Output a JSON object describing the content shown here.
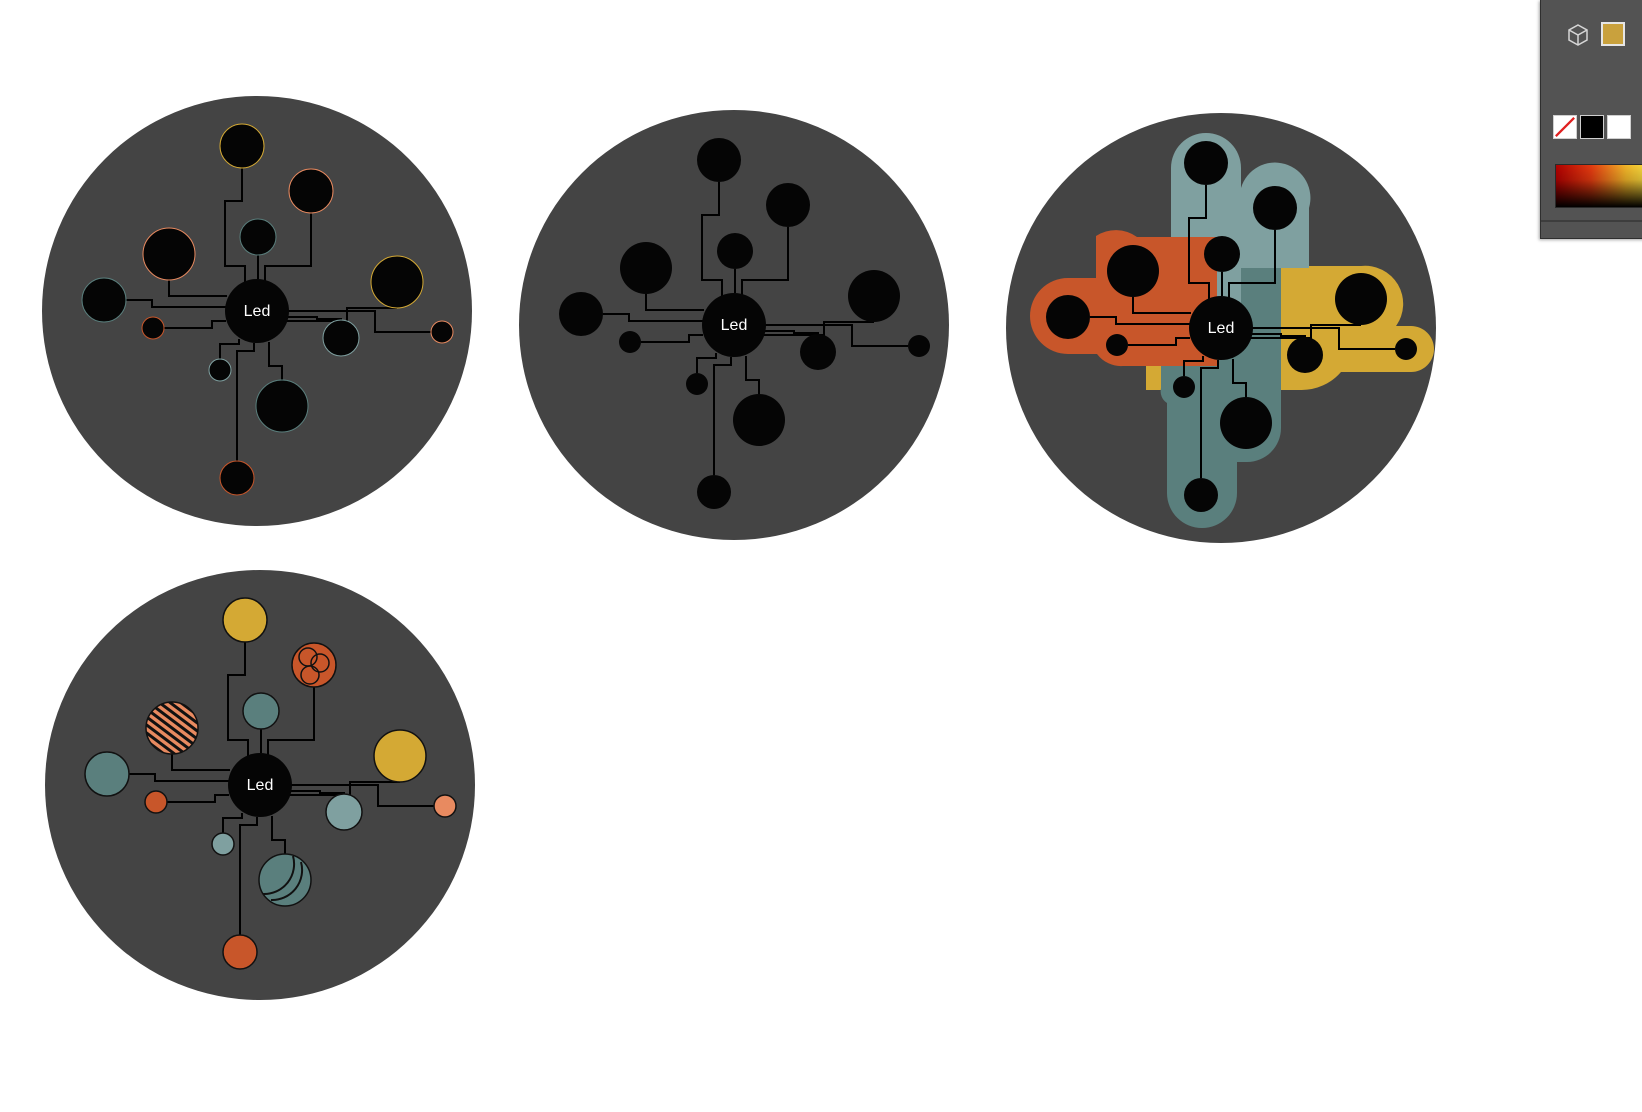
{
  "colors": {
    "canvas": "#ffffff",
    "disc": "#444444",
    "node": "#050505",
    "wire": "#000000",
    "teal": "#5a7f7d",
    "light_teal": "#7fa0a0",
    "orange": "#c8562a",
    "salmon": "#e88a60",
    "mustard": "#d4a934"
  },
  "diagrams": [
    {
      "center_label": "Led"
    },
    {
      "center_label": "Led"
    },
    {
      "center_label": "Led"
    },
    {
      "center_label": "Led"
    }
  ],
  "tool_panel": {
    "cube_icon": "cube-icon",
    "fill_swatch_color": "#c9a13d",
    "swatches": [
      "none",
      "#000000",
      "#ffffff"
    ]
  }
}
